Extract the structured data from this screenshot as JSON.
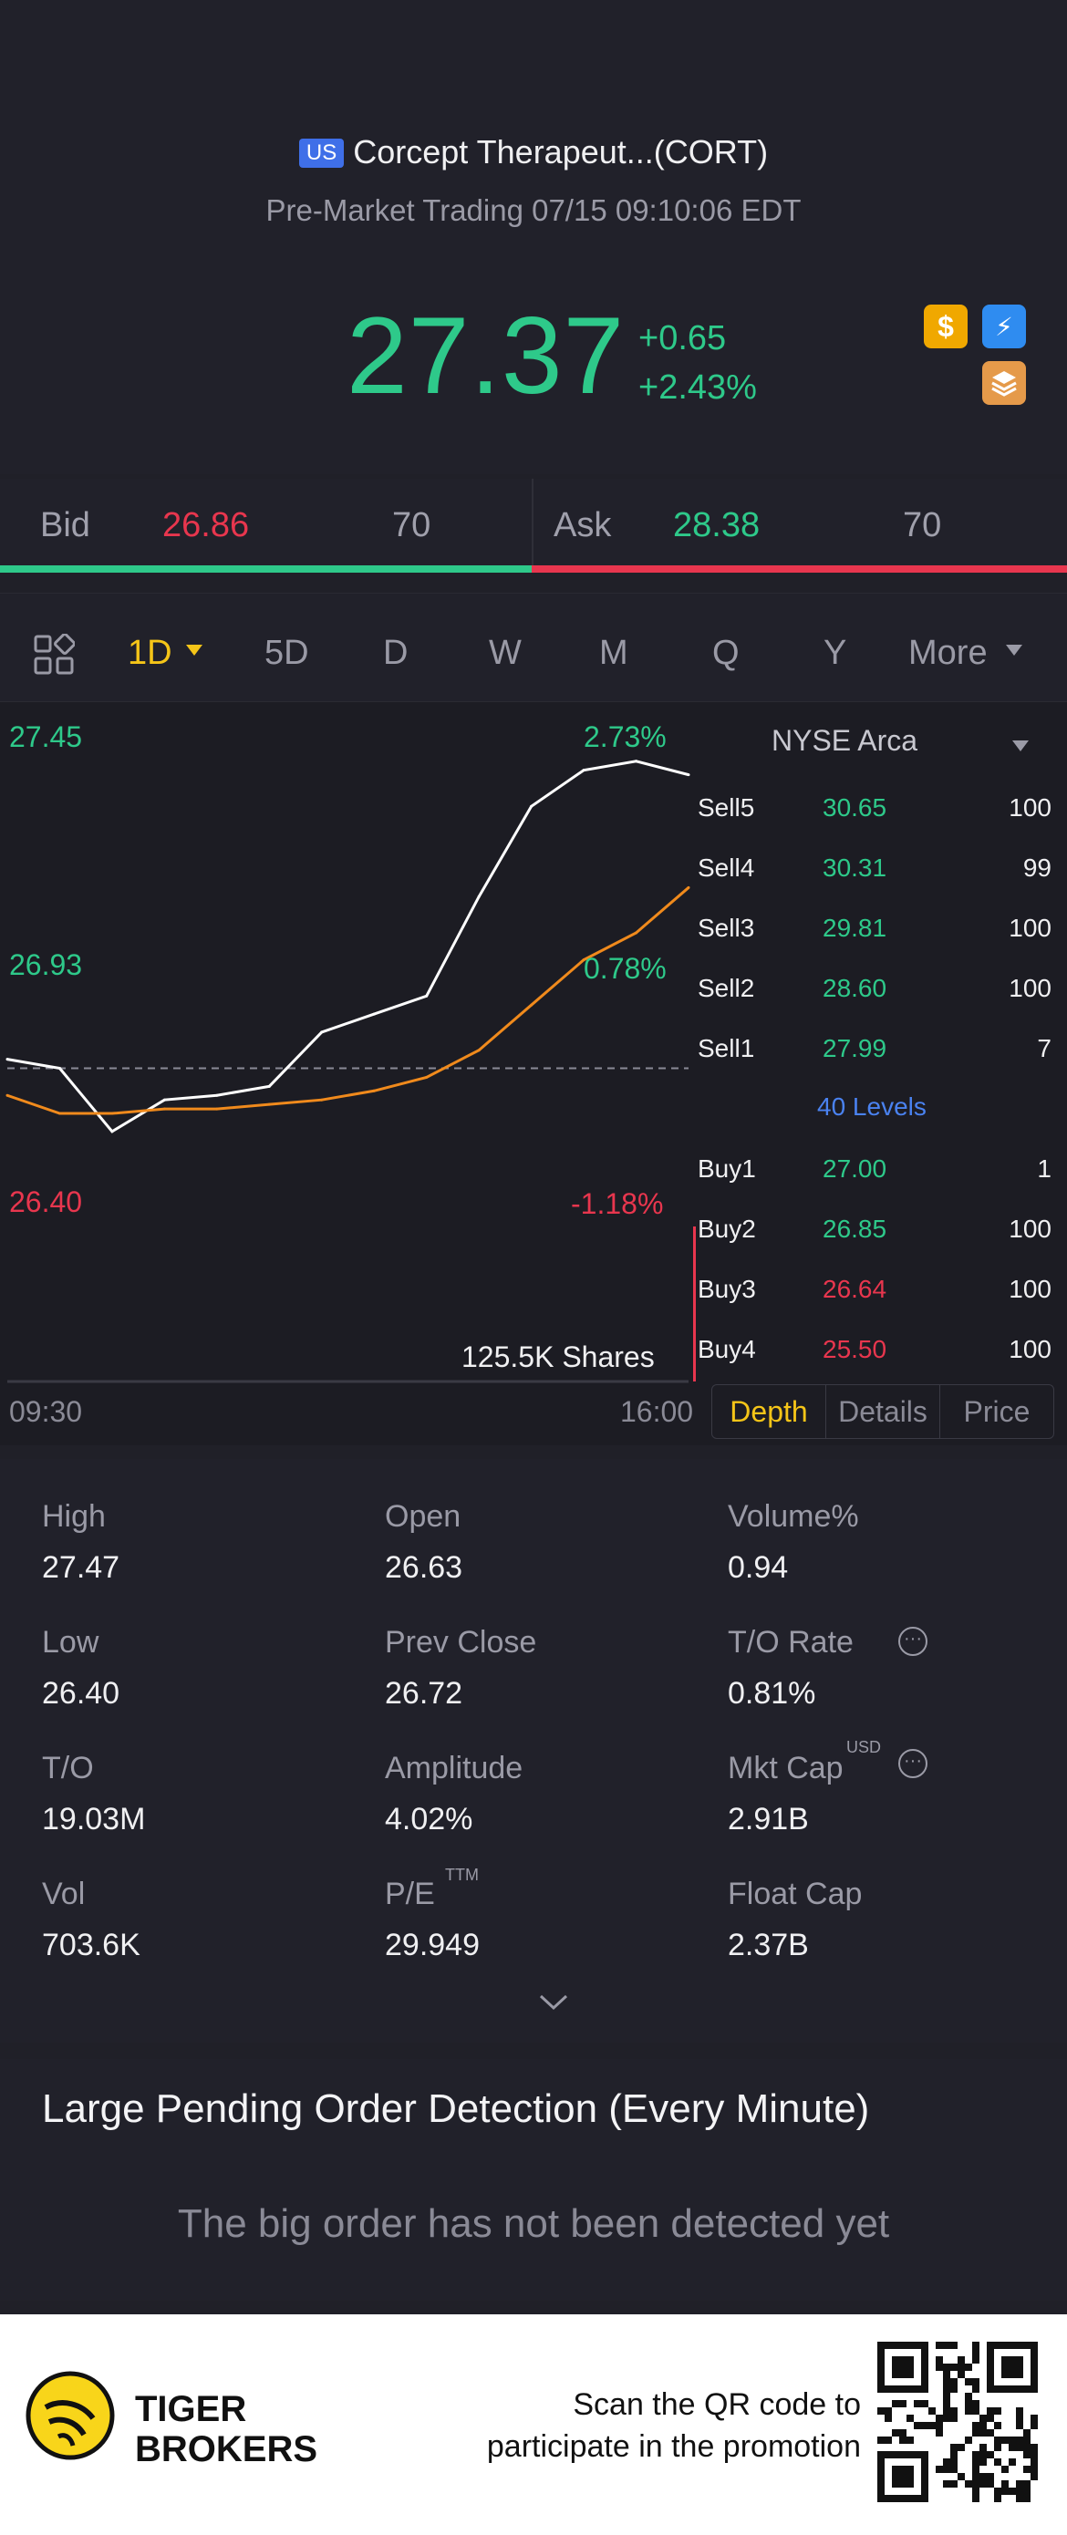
{
  "header": {
    "market_badge": "US",
    "stock_name": "Corcept Therapeut...(CORT)",
    "session_status": "Pre-Market Trading 07/15 09:10:06 EDT",
    "last_price": "27.37",
    "change_abs": "+0.65",
    "change_pct": "+2.43%",
    "icons": [
      "dollar-icon",
      "lightning-level1-icon",
      "stack-icon"
    ],
    "colors": {
      "up": "#2ec98a",
      "down": "#e8364e",
      "accent": "#f5c518"
    }
  },
  "bid_ask": {
    "bid_label": "Bid",
    "bid_price": "26.86",
    "bid_size": "70",
    "ask_label": "Ask",
    "ask_price": "28.38",
    "ask_size": "70"
  },
  "periods": {
    "items": [
      "1D",
      "5D",
      "D",
      "W",
      "M",
      "Q",
      "Y",
      "More"
    ],
    "selected": "1D"
  },
  "chart": {
    "y_labels_left": [
      "27.45",
      "26.93",
      "26.40"
    ],
    "pct_labels_right": [
      "2.73%",
      "0.78%",
      "-1.18%"
    ],
    "x_labels": [
      "09:30",
      "16:00"
    ],
    "volume_label": "125.5K Shares"
  },
  "chart_data": {
    "type": "line",
    "x": [
      "09:30",
      "10:00",
      "10:30",
      "11:00",
      "11:30",
      "12:00",
      "12:30",
      "13:00",
      "13:30",
      "14:00",
      "14:30",
      "15:00",
      "15:30",
      "16:00"
    ],
    "series": [
      {
        "values": [
          26.74,
          26.72,
          26.58,
          26.65,
          26.66,
          26.68,
          26.8,
          26.84,
          26.88,
          27.1,
          27.3,
          27.38,
          27.4,
          27.37
        ]
      },
      {
        "values": [
          26.66,
          26.62,
          26.62,
          26.63,
          26.63,
          26.64,
          26.65,
          26.67,
          26.7,
          26.76,
          26.86,
          26.96,
          27.02,
          27.12
        ]
      }
    ],
    "prev_close": 26.72,
    "ylim": [
      26.4,
      27.45
    ]
  },
  "order_book": {
    "exchange": "NYSE Arca",
    "sells": [
      {
        "name": "Sell5",
        "price": "30.65",
        "qty": "100"
      },
      {
        "name": "Sell4",
        "price": "30.31",
        "qty": "99"
      },
      {
        "name": "Sell3",
        "price": "29.81",
        "qty": "100"
      },
      {
        "name": "Sell2",
        "price": "28.60",
        "qty": "100"
      },
      {
        "name": "Sell1",
        "price": "27.99",
        "qty": "7"
      }
    ],
    "levels_link": "40 Levels",
    "buys": [
      {
        "name": "Buy1",
        "price": "27.00",
        "qty": "1"
      },
      {
        "name": "Buy2",
        "price": "26.85",
        "qty": "100"
      },
      {
        "name": "Buy3",
        "price": "26.64",
        "qty": "100"
      },
      {
        "name": "Buy4",
        "price": "25.50",
        "qty": "100"
      }
    ],
    "tabs": [
      "Depth",
      "Details",
      "Price"
    ],
    "selected_tab": "Depth"
  },
  "stats": {
    "high": {
      "label": "High",
      "value": "27.47"
    },
    "open": {
      "label": "Open",
      "value": "26.63"
    },
    "volume_pct": {
      "label": "Volume%",
      "value": "0.94"
    },
    "low": {
      "label": "Low",
      "value": "26.40"
    },
    "prev_close": {
      "label": "Prev Close",
      "value": "26.72"
    },
    "to_rate": {
      "label": "T/O Rate",
      "value": "0.81%"
    },
    "to": {
      "label": "T/O",
      "value": "19.03M"
    },
    "amplitude": {
      "label": "Amplitude",
      "value": "4.02%"
    },
    "mkt_cap": {
      "label": "Mkt Cap",
      "value": "2.91B",
      "sup": "USD"
    },
    "vol": {
      "label": "Vol",
      "value": "703.6K"
    },
    "pe": {
      "label": "P/E",
      "value": "29.949",
      "sup": "TTM"
    },
    "float_cap": {
      "label": "Float Cap",
      "value": "2.37B"
    }
  },
  "large_orders": {
    "title": "Large Pending Order Detection (Every Minute)",
    "empty_text": "The big order has not been detected yet"
  },
  "footer": {
    "brand_line1": "TIGER",
    "brand_line2": "BROKERS",
    "promo_line1": "Scan the QR code to",
    "promo_line2": "participate in the promotion"
  }
}
